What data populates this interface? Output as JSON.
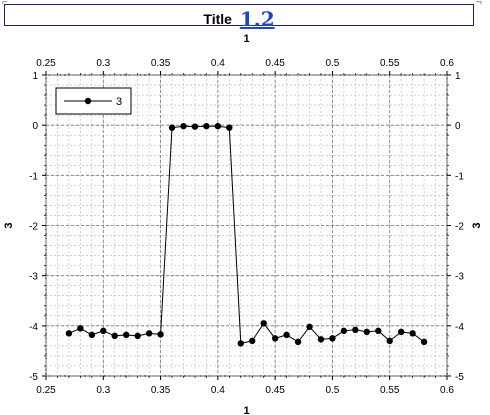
{
  "window": {
    "title": "Title",
    "title_annotation": "1.2"
  },
  "chart_data": {
    "type": "line",
    "title": "Title",
    "xlabel": "1",
    "ylabel": "3",
    "x_ticks": [
      "0.25",
      "0.3",
      "0.35",
      "0.4",
      "0.45",
      "0.5",
      "0.55",
      "0.6"
    ],
    "y_ticks": [
      "1",
      "0",
      "-1",
      "-2",
      "-3",
      "-4",
      "-5"
    ],
    "xlim": [
      0.25,
      0.6
    ],
    "ylim": [
      -5,
      1
    ],
    "grid": true,
    "grid_minor": true,
    "legend_position": "top-left",
    "line_color": "#000000",
    "marker": "circle",
    "series": [
      {
        "name": "3",
        "x": [
          0.27,
          0.28,
          0.29,
          0.3,
          0.31,
          0.32,
          0.33,
          0.34,
          0.35,
          0.36,
          0.37,
          0.38,
          0.39,
          0.4,
          0.41,
          0.42,
          0.43,
          0.44,
          0.45,
          0.46,
          0.47,
          0.48,
          0.49,
          0.5,
          0.51,
          0.52,
          0.53,
          0.54,
          0.55,
          0.56,
          0.57,
          0.58
        ],
        "y": [
          -4.15,
          -4.05,
          -4.18,
          -4.1,
          -4.2,
          -4.18,
          -4.2,
          -4.15,
          -4.17,
          -0.05,
          -0.02,
          -0.03,
          -0.02,
          -0.02,
          -0.05,
          -4.35,
          -4.3,
          -3.95,
          -4.25,
          -4.18,
          -4.32,
          -4.02,
          -4.27,
          -4.25,
          -4.1,
          -4.08,
          -4.12,
          -4.1,
          -4.3,
          -4.12,
          -4.15,
          -4.32
        ]
      }
    ]
  }
}
